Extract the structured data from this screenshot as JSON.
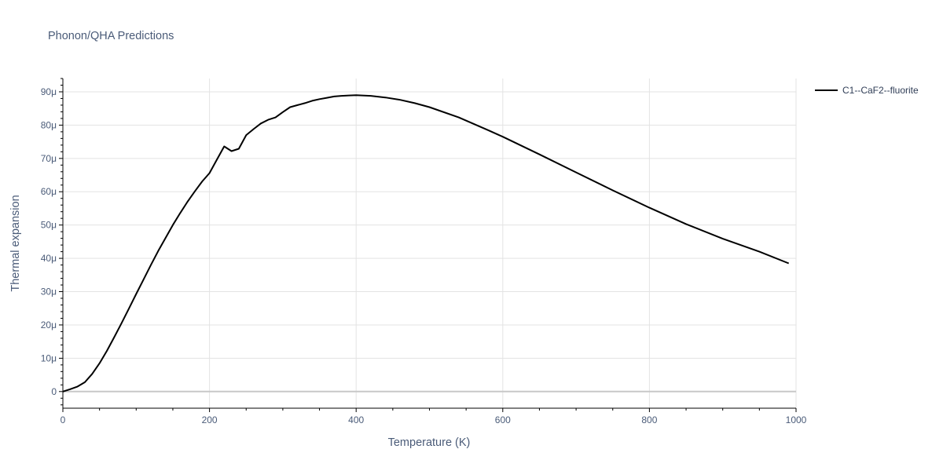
{
  "chart_data": {
    "type": "line",
    "title": "Phonon/QHA Predictions",
    "xlabel": "Temperature (K)",
    "ylabel": "Thermal expansion",
    "xlim": [
      0,
      1000
    ],
    "ylim": [
      -5,
      94
    ],
    "x_ticks": [
      0,
      200,
      400,
      600,
      800,
      1000
    ],
    "x_tick_labels": [
      "0",
      "200",
      "400",
      "600",
      "800",
      "1000"
    ],
    "y_ticks": [
      0,
      10,
      20,
      30,
      40,
      50,
      60,
      70,
      80,
      90
    ],
    "y_tick_labels": [
      "0",
      "10μ",
      "20μ",
      "30μ",
      "40μ",
      "50μ",
      "60μ",
      "70μ",
      "80μ",
      "90μ"
    ],
    "grid": true,
    "legend_position": "top-right, outside plot",
    "series": [
      {
        "name": "C1--CaF2--fluorite",
        "color": "#000000",
        "x": [
          0,
          10,
          20,
          30,
          40,
          50,
          60,
          70,
          80,
          90,
          100,
          110,
          120,
          130,
          140,
          150,
          160,
          170,
          180,
          190,
          200,
          210,
          220,
          230,
          240,
          250,
          260,
          270,
          280,
          290,
          300,
          310,
          320,
          330,
          340,
          350,
          360,
          370,
          380,
          390,
          400,
          420,
          440,
          460,
          480,
          500,
          540,
          580,
          600,
          650,
          700,
          750,
          800,
          850,
          900,
          950,
          990
        ],
        "y": [
          0,
          0.7,
          1.5,
          2.8,
          5.3,
          8.5,
          12.2,
          16.3,
          20.5,
          24.9,
          29.3,
          33.6,
          38.0,
          42.2,
          46.1,
          50.0,
          53.6,
          57.0,
          60.1,
          63.1,
          65.6,
          69.6,
          73.6,
          72.2,
          72.9,
          77.0,
          78.8,
          80.5,
          81.6,
          82.3,
          83.9,
          85.4,
          86.0,
          86.6,
          87.3,
          87.8,
          88.2,
          88.6,
          88.8,
          88.9,
          89.0,
          88.8,
          88.3,
          87.6,
          86.6,
          85.4,
          82.3,
          78.5,
          76.5,
          71.2,
          65.8,
          60.4,
          55.2,
          50.3,
          45.9,
          42.0,
          38.5
        ]
      }
    ]
  }
}
